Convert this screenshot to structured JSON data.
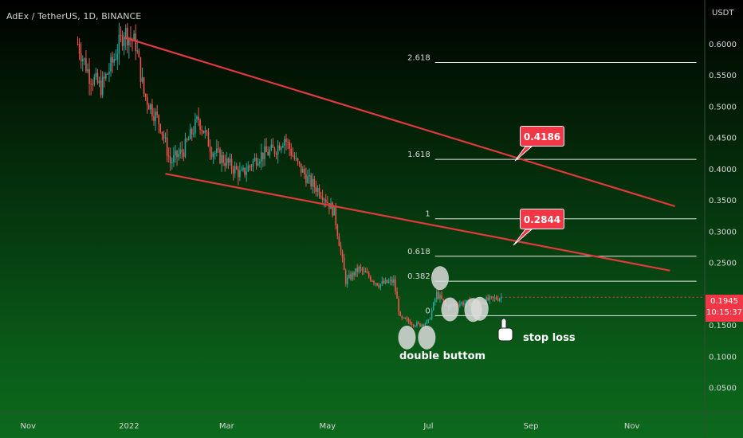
{
  "header": {
    "symbol": "AdEx / TetherUS, 1D, BINANCE"
  },
  "price_axis": {
    "unit": "USDT",
    "ticks": [
      "0.6000",
      "0.5500",
      "0.5000",
      "0.4500",
      "0.4000",
      "0.3500",
      "0.3000",
      "0.2500",
      "0.1500",
      "0.1000",
      "0.0500"
    ]
  },
  "time_axis": {
    "ticks": [
      "Nov",
      "2022",
      "Mar",
      "May",
      "Jul",
      "Sep",
      "Nov"
    ]
  },
  "last_price": {
    "value": "0.1945",
    "countdown": "10:15:37"
  },
  "annotations": {
    "callout_upper": "0.4186",
    "callout_lower": "0.2844",
    "pattern_label": "double buttom",
    "stop_label": "stop loss"
  },
  "chart_data": {
    "type": "candlestick",
    "x_range": [
      "2021-10-15",
      "2022-12-15"
    ],
    "y_range": [
      0.01,
      0.67
    ],
    "y_ticks": [
      0.6,
      0.55,
      0.5,
      0.45,
      0.4,
      0.35,
      0.3,
      0.25,
      0.15,
      0.1,
      0.05
    ],
    "x_ticks": [
      {
        "date": "2021-11-01",
        "label": "Nov"
      },
      {
        "date": "2022-01-01",
        "label": "2022"
      },
      {
        "date": "2022-03-01",
        "label": "Mar"
      },
      {
        "date": "2022-05-01",
        "label": "May"
      },
      {
        "date": "2022-07-01",
        "label": "Jul"
      },
      {
        "date": "2022-09-01",
        "label": "Sep"
      },
      {
        "date": "2022-11-01",
        "label": "Nov"
      }
    ],
    "close_path": [
      [
        "2021-12-01",
        0.6
      ],
      [
        "2021-12-08",
        0.55
      ],
      [
        "2021-12-15",
        0.53
      ],
      [
        "2021-12-22",
        0.57
      ],
      [
        "2021-12-29",
        0.62
      ],
      [
        "2022-01-05",
        0.6
      ],
      [
        "2022-01-10",
        0.52
      ],
      [
        "2022-01-20",
        0.47
      ],
      [
        "2022-01-26",
        0.41
      ],
      [
        "2022-02-03",
        0.43
      ],
      [
        "2022-02-12",
        0.48
      ],
      [
        "2022-02-20",
        0.43
      ],
      [
        "2022-03-01",
        0.41
      ],
      [
        "2022-03-10",
        0.39
      ],
      [
        "2022-03-20",
        0.42
      ],
      [
        "2022-03-30",
        0.43
      ],
      [
        "2022-04-05",
        0.45
      ],
      [
        "2022-04-12",
        0.41
      ],
      [
        "2022-04-20",
        0.38
      ],
      [
        "2022-04-28",
        0.36
      ],
      [
        "2022-05-05",
        0.33
      ],
      [
        "2022-05-12",
        0.22
      ],
      [
        "2022-05-20",
        0.24
      ],
      [
        "2022-06-01",
        0.215
      ],
      [
        "2022-06-10",
        0.22
      ],
      [
        "2022-06-14",
        0.16
      ],
      [
        "2022-06-25",
        0.15
      ],
      [
        "2022-07-01",
        0.155
      ],
      [
        "2022-07-06",
        0.2
      ],
      [
        "2022-07-12",
        0.18
      ],
      [
        "2022-07-20",
        0.185
      ],
      [
        "2022-07-30",
        0.185
      ],
      [
        "2022-08-06",
        0.19
      ],
      [
        "2022-08-14",
        0.1945
      ]
    ],
    "fib_levels": [
      {
        "label": "2.618",
        "price": 0.57
      },
      {
        "label": "1.618",
        "price": 0.415
      },
      {
        "label": "1",
        "price": 0.32
      },
      {
        "label": "0.618",
        "price": 0.26
      },
      {
        "label": "0.382",
        "price": 0.22
      },
      {
        "label": "0",
        "price": 0.165
      }
    ],
    "fib_range": [
      "2022-07-05",
      "2022-12-10"
    ],
    "trendlines": [
      {
        "from": [
          "2021-12-29",
          0.61
        ],
        "to": [
          "2022-11-27",
          0.34
        ]
      },
      {
        "from": [
          "2022-01-23",
          0.392
        ],
        "to": [
          "2022-11-24",
          0.237
        ]
      }
    ],
    "markers": [
      {
        "date": "2022-06-18",
        "price": 0.13
      },
      {
        "date": "2022-06-30",
        "price": 0.13
      },
      {
        "date": "2022-07-08",
        "price": 0.225
      },
      {
        "date": "2022-07-14",
        "price": 0.175
      },
      {
        "date": "2022-07-28",
        "price": 0.174
      },
      {
        "date": "2022-08-01",
        "price": 0.176
      }
    ],
    "last_price": 0.1945
  }
}
